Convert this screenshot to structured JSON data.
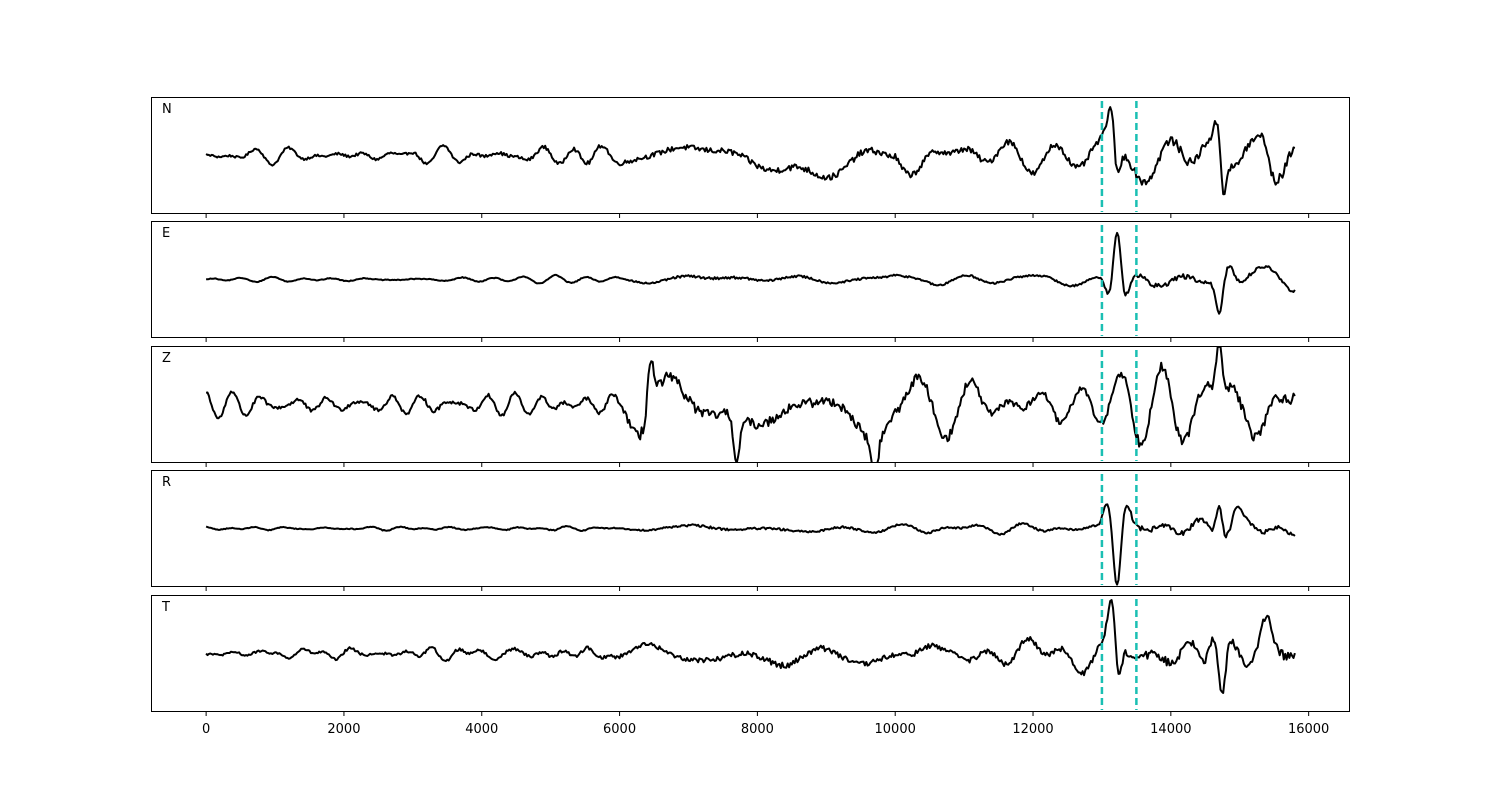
{
  "chart_data": {
    "type": "line",
    "title": "",
    "xlabel": "",
    "ylabel": "",
    "xlim": [
      -800,
      16600
    ],
    "x_ticks": [
      0,
      2000,
      4000,
      6000,
      8000,
      10000,
      12000,
      14000,
      16000
    ],
    "x_tick_labels": [
      "0",
      "2000",
      "4000",
      "6000",
      "8000",
      "10000",
      "12000",
      "14000",
      "16000"
    ],
    "x_range": [
      0,
      15800
    ],
    "grid": false,
    "line_color": "#000000",
    "markers": {
      "color": "#1ABFB3",
      "style": "dashed",
      "x": [
        13000,
        13500
      ]
    },
    "panels": [
      {
        "label": "N",
        "ylim": [
          -1.2,
          1.2
        ],
        "envelope": [
          [
            0,
            0.12
          ],
          [
            4500,
            0.18
          ],
          [
            6500,
            0.28
          ],
          [
            8500,
            0.38
          ],
          [
            10500,
            0.34
          ],
          [
            12500,
            0.34
          ],
          [
            13000,
            0.38
          ],
          [
            13500,
            0.48
          ],
          [
            15800,
            0.55
          ]
        ],
        "events": [
          {
            "x": 13150,
            "amp": 0.95,
            "w": 80
          },
          {
            "x": 13210,
            "amp": -1.05,
            "w": 70
          },
          {
            "x": 14700,
            "amp": 0.75,
            "w": 70
          },
          {
            "x": 14750,
            "amp": -1.1,
            "w": 60
          },
          {
            "x": 15350,
            "amp": 0.45,
            "w": 90
          }
        ]
      },
      {
        "label": "E",
        "ylim": [
          -1.2,
          1.2
        ],
        "envelope": [
          [
            0,
            0.04
          ],
          [
            6000,
            0.06
          ],
          [
            7000,
            0.14
          ],
          [
            12800,
            0.1
          ],
          [
            13000,
            0.12
          ],
          [
            13500,
            0.3
          ],
          [
            15800,
            0.2
          ]
        ],
        "events": [
          {
            "x": 13120,
            "amp": -0.5,
            "w": 90
          },
          {
            "x": 13220,
            "amp": 1.2,
            "w": 80
          },
          {
            "x": 13320,
            "amp": -0.55,
            "w": 90
          },
          {
            "x": 14700,
            "amp": -0.65,
            "w": 70
          },
          {
            "x": 14850,
            "amp": 0.35,
            "w": 90
          }
        ]
      },
      {
        "label": "Z",
        "ylim": [
          -1.2,
          1.2
        ],
        "envelope": [
          [
            0,
            0.22
          ],
          [
            6000,
            0.2
          ],
          [
            6300,
            0.75
          ],
          [
            7000,
            0.6
          ],
          [
            8000,
            0.55
          ],
          [
            10000,
            0.55
          ],
          [
            12500,
            0.38
          ],
          [
            13000,
            0.38
          ],
          [
            13500,
            0.55
          ],
          [
            15800,
            0.6
          ]
        ],
        "events": [
          {
            "x": 6450,
            "amp": 1.0,
            "w": 60
          },
          {
            "x": 7700,
            "amp": -0.95,
            "w": 60
          },
          {
            "x": 9700,
            "amp": -0.9,
            "w": 60
          },
          {
            "x": 14700,
            "amp": 0.95,
            "w": 60
          }
        ]
      },
      {
        "label": "R",
        "ylim": [
          -1.2,
          1.2
        ],
        "envelope": [
          [
            0,
            0.04
          ],
          [
            6000,
            0.06
          ],
          [
            7000,
            0.14
          ],
          [
            12800,
            0.1
          ],
          [
            13000,
            0.12
          ],
          [
            13500,
            0.3
          ],
          [
            15800,
            0.2
          ]
        ],
        "events": [
          {
            "x": 13080,
            "amp": 0.55,
            "w": 80
          },
          {
            "x": 13220,
            "amp": -1.2,
            "w": 70
          },
          {
            "x": 13350,
            "amp": 0.5,
            "w": 90
          },
          {
            "x": 14700,
            "amp": 0.7,
            "w": 60
          },
          {
            "x": 14950,
            "amp": 0.35,
            "w": 80
          }
        ]
      },
      {
        "label": "T",
        "ylim": [
          -1.2,
          1.2
        ],
        "envelope": [
          [
            0,
            0.12
          ],
          [
            4500,
            0.16
          ],
          [
            7000,
            0.26
          ],
          [
            8500,
            0.38
          ],
          [
            10000,
            0.3
          ],
          [
            12500,
            0.3
          ],
          [
            13000,
            0.35
          ],
          [
            13500,
            0.48
          ],
          [
            15800,
            0.5
          ]
        ],
        "events": [
          {
            "x": 13150,
            "amp": 0.95,
            "w": 80
          },
          {
            "x": 13230,
            "amp": -0.85,
            "w": 70
          },
          {
            "x": 14750,
            "amp": -1.0,
            "w": 60
          },
          {
            "x": 14600,
            "amp": 0.55,
            "w": 80
          },
          {
            "x": 15380,
            "amp": 0.5,
            "w": 90
          }
        ]
      }
    ]
  }
}
